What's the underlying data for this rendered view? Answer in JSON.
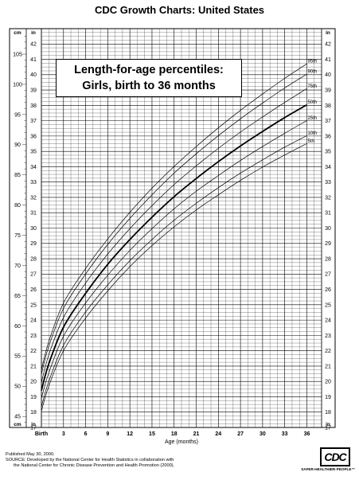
{
  "header": {
    "title": "CDC Growth Charts: United States"
  },
  "chart_data": {
    "type": "line",
    "title": "Length-for-age percentiles:",
    "subtitle": "Girls, birth to 36 months",
    "xlabel": "Age (months)",
    "x_ticks": [
      "Birth",
      "3",
      "6",
      "9",
      "12",
      "15",
      "18",
      "21",
      "24",
      "27",
      "30",
      "33",
      "36"
    ],
    "xlim": [
      0,
      38
    ],
    "x": [
      0,
      1,
      3,
      6,
      9,
      12,
      15,
      18,
      21,
      24,
      27,
      30,
      33,
      36
    ],
    "y_left_unit": "cm",
    "y_left_ticks": [
      "45",
      "50",
      "55",
      "60",
      "65",
      "70",
      "75",
      "80",
      "85",
      "90",
      "95",
      "100",
      "105"
    ],
    "y_left_range_cm": [
      43.2,
      109.2
    ],
    "y_right_unit": "in",
    "y_inner_unit": "in",
    "y_in_ticks": [
      "17",
      "18",
      "19",
      "20",
      "21",
      "22",
      "23",
      "24",
      "25",
      "26",
      "27",
      "28",
      "29",
      "30",
      "31",
      "32",
      "33",
      "34",
      "35",
      "36",
      "37",
      "38",
      "39",
      "40",
      "41",
      "42"
    ],
    "y_in_range": [
      17,
      43
    ],
    "grid": true,
    "legend": "percentile labels at right end of each curve",
    "series": [
      {
        "name": "5th",
        "values": [
          45.9,
          50.0,
          55.9,
          61.3,
          65.8,
          69.8,
          73.3,
          76.4,
          79.2,
          81.7,
          84.1,
          86.3,
          88.3,
          90.2
        ]
      },
      {
        "name": "10th",
        "values": [
          46.6,
          50.8,
          56.8,
          62.3,
          66.8,
          70.8,
          74.3,
          77.5,
          80.3,
          82.9,
          85.3,
          87.5,
          89.6,
          91.5
        ]
      },
      {
        "name": "25th",
        "values": [
          48.0,
          52.2,
          58.3,
          63.8,
          68.4,
          72.5,
          76.1,
          79.4,
          82.3,
          84.9,
          87.4,
          89.7,
          91.9,
          94.0
        ]
      },
      {
        "name": "50th",
        "values": [
          49.3,
          53.7,
          59.8,
          65.4,
          70.2,
          74.3,
          78.0,
          81.4,
          84.4,
          87.2,
          89.8,
          92.2,
          94.5,
          96.6
        ]
      },
      {
        "name": "75th",
        "values": [
          50.6,
          55.2,
          61.4,
          67.1,
          71.9,
          76.1,
          79.9,
          83.4,
          86.5,
          89.4,
          92.1,
          94.6,
          97.0,
          99.3
        ]
      },
      {
        "name": "90th",
        "values": [
          52.0,
          56.6,
          62.9,
          68.6,
          73.5,
          77.8,
          81.7,
          85.3,
          88.5,
          91.5,
          94.3,
          96.9,
          99.4,
          101.7
        ]
      },
      {
        "name": "95th",
        "values": [
          52.7,
          57.4,
          63.8,
          69.5,
          74.4,
          78.8,
          82.8,
          86.4,
          89.7,
          92.8,
          95.7,
          98.4,
          101.0,
          103.4
        ]
      }
    ],
    "bold_series": "50th"
  },
  "footer": {
    "published": "Published May 30, 2000.",
    "source_line1": "SOURCE: Developed by the National Center for Health Statistics in collaboration with",
    "source_line2": "the National Center for Chronic Disease Prevention and Health Promotion (2000)."
  },
  "logo": {
    "mark": "CDC",
    "motto": "SAFER·HEALTHIER·PEOPLE™"
  }
}
